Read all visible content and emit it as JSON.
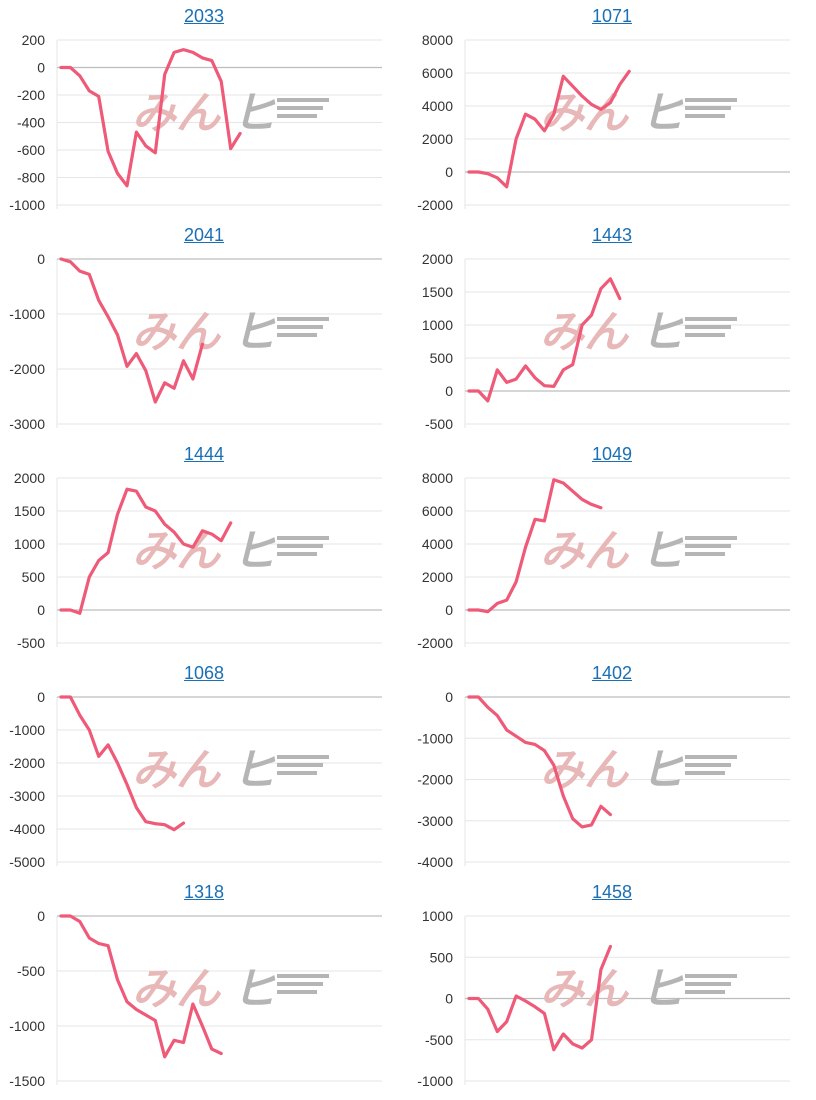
{
  "watermark": {
    "text_a": "みん",
    "text_b": "ヒ",
    "color_a": "#e8b7b7",
    "color_b": "#b5b5b5"
  },
  "colors": {
    "line": "#ee5a78",
    "grid": "#e6e6e6",
    "axis": "#bdbdbd",
    "title_link": "#1a6fb5"
  },
  "chart_data": [
    {
      "type": "line",
      "title": "2033",
      "ylim": [
        -1000,
        200
      ],
      "yticks": [
        200,
        0,
        -200,
        -400,
        -600,
        -800,
        -1000
      ],
      "x": [
        0,
        1,
        2,
        3,
        4,
        5,
        6,
        7,
        8,
        9,
        10,
        11,
        12,
        13,
        14,
        15,
        16,
        17,
        18,
        19
      ],
      "values": [
        0,
        0,
        -60,
        -170,
        -210,
        -610,
        -770,
        -860,
        -470,
        -570,
        -620,
        -50,
        110,
        130,
        110,
        70,
        50,
        -100,
        -590,
        -480
      ]
    },
    {
      "type": "line",
      "title": "1071",
      "ylim": [
        -2000,
        8000
      ],
      "yticks": [
        8000,
        6000,
        4000,
        2000,
        0,
        -2000
      ],
      "x": [
        0,
        1,
        2,
        3,
        4,
        5,
        6,
        7,
        8,
        9,
        10,
        11,
        12,
        13,
        14,
        15,
        16,
        17,
        18,
        19
      ],
      "values": [
        0,
        0,
        -100,
        -350,
        -900,
        2000,
        3500,
        3200,
        2500,
        3500,
        5800,
        5200,
        4600,
        4100,
        3800,
        4200,
        5300,
        6100,
        6100,
        6100
      ]
    },
    {
      "type": "line",
      "title": "2041",
      "ylim": [
        -3000,
        0
      ],
      "yticks": [
        0,
        -1000,
        -2000,
        -3000
      ],
      "x": [
        0,
        1,
        2,
        3,
        4,
        5,
        6,
        7,
        8,
        9,
        10,
        11,
        12,
        13,
        14,
        15,
        16,
        17,
        18,
        19
      ],
      "values": [
        0,
        -50,
        -220,
        -280,
        -750,
        -1050,
        -1380,
        -1950,
        -1720,
        -2030,
        -2600,
        -2250,
        -2350,
        -1850,
        -2180,
        -1550,
        -1550,
        -1550,
        -1550,
        -1550
      ]
    },
    {
      "type": "line",
      "title": "1443",
      "ylim": [
        -500,
        2000
      ],
      "yticks": [
        2000,
        1500,
        1000,
        500,
        0,
        -500
      ],
      "x": [
        0,
        1,
        2,
        3,
        4,
        5,
        6,
        7,
        8,
        9,
        10,
        11,
        12,
        13,
        14,
        15,
        16,
        17,
        18,
        19
      ],
      "values": [
        0,
        0,
        -150,
        320,
        130,
        180,
        380,
        200,
        80,
        70,
        320,
        400,
        1000,
        1150,
        1550,
        1700,
        1400,
        1230,
        1230,
        1230
      ]
    },
    {
      "type": "line",
      "title": "1444",
      "ylim": [
        -500,
        2000
      ],
      "yticks": [
        2000,
        1500,
        1000,
        500,
        0,
        -500
      ],
      "x": [
        0,
        1,
        2,
        3,
        4,
        5,
        6,
        7,
        8,
        9,
        10,
        11,
        12,
        13,
        14,
        15,
        16,
        17,
        18,
        19
      ],
      "values": [
        0,
        0,
        -50,
        500,
        750,
        870,
        1450,
        1830,
        1800,
        1560,
        1500,
        1300,
        1180,
        1000,
        950,
        1200,
        1150,
        1050,
        1320,
        1320
      ]
    },
    {
      "type": "line",
      "title": "1049",
      "ylim": [
        -2000,
        8000
      ],
      "yticks": [
        8000,
        6000,
        4000,
        2000,
        0,
        -2000
      ],
      "x": [
        0,
        1,
        2,
        3,
        4,
        5,
        6,
        7,
        8,
        9,
        10,
        11,
        12,
        13,
        14,
        15,
        16,
        17,
        18,
        19
      ],
      "values": [
        0,
        0,
        -100,
        400,
        600,
        1700,
        3800,
        5500,
        5400,
        7900,
        7700,
        7200,
        6700,
        6400,
        6200,
        6050,
        6050,
        6050,
        6050,
        6050
      ]
    },
    {
      "type": "line",
      "title": "1068",
      "ylim": [
        -5000,
        0
      ],
      "yticks": [
        0,
        -1000,
        -2000,
        -3000,
        -4000,
        -5000
      ],
      "x": [
        0,
        1,
        2,
        3,
        4,
        5,
        6,
        7,
        8,
        9,
        10,
        11,
        12,
        13,
        14,
        15,
        16,
        17,
        18,
        19
      ],
      "values": [
        0,
        0,
        -550,
        -1000,
        -1800,
        -1450,
        -2000,
        -2650,
        -3350,
        -3780,
        -3840,
        -3870,
        -4020,
        -3820,
        -3820,
        -3820,
        -3820,
        -3820,
        -3820,
        -3820
      ]
    },
    {
      "type": "line",
      "title": "1402",
      "ylim": [
        -4000,
        0
      ],
      "yticks": [
        0,
        -1000,
        -2000,
        -3000,
        -4000
      ],
      "x": [
        0,
        1,
        2,
        3,
        4,
        5,
        6,
        7,
        8,
        9,
        10,
        11,
        12,
        13,
        14,
        15,
        16,
        17,
        18,
        19
      ],
      "values": [
        0,
        0,
        -250,
        -450,
        -800,
        -950,
        -1100,
        -1150,
        -1300,
        -1650,
        -2400,
        -2950,
        -3150,
        -3100,
        -2650,
        -2850,
        -2850,
        -2850,
        -2850,
        -2850
      ]
    },
    {
      "type": "line",
      "title": "1318",
      "ylim": [
        -1500,
        0
      ],
      "yticks": [
        0,
        -500,
        -1000,
        -1500
      ],
      "x": [
        0,
        1,
        2,
        3,
        4,
        5,
        6,
        7,
        8,
        9,
        10,
        11,
        12,
        13,
        14,
        15,
        16,
        17,
        18,
        19
      ],
      "values": [
        0,
        0,
        -50,
        -200,
        -250,
        -270,
        -580,
        -780,
        -850,
        -900,
        -950,
        -1280,
        -1130,
        -1150,
        -800,
        -1000,
        -1210,
        -1250,
        -1250,
        -1250
      ]
    },
    {
      "type": "line",
      "title": "1458",
      "ylim": [
        -1000,
        1000
      ],
      "yticks": [
        1000,
        500,
        0,
        -500,
        -1000
      ],
      "x": [
        0,
        1,
        2,
        3,
        4,
        5,
        6,
        7,
        8,
        9,
        10,
        11,
        12,
        13,
        14,
        15,
        16,
        17,
        18,
        19
      ],
      "values": [
        0,
        0,
        -130,
        -400,
        -280,
        30,
        -30,
        -100,
        -180,
        -620,
        -430,
        -550,
        -600,
        -500,
        350,
        630,
        630,
        630,
        630,
        630
      ]
    }
  ]
}
